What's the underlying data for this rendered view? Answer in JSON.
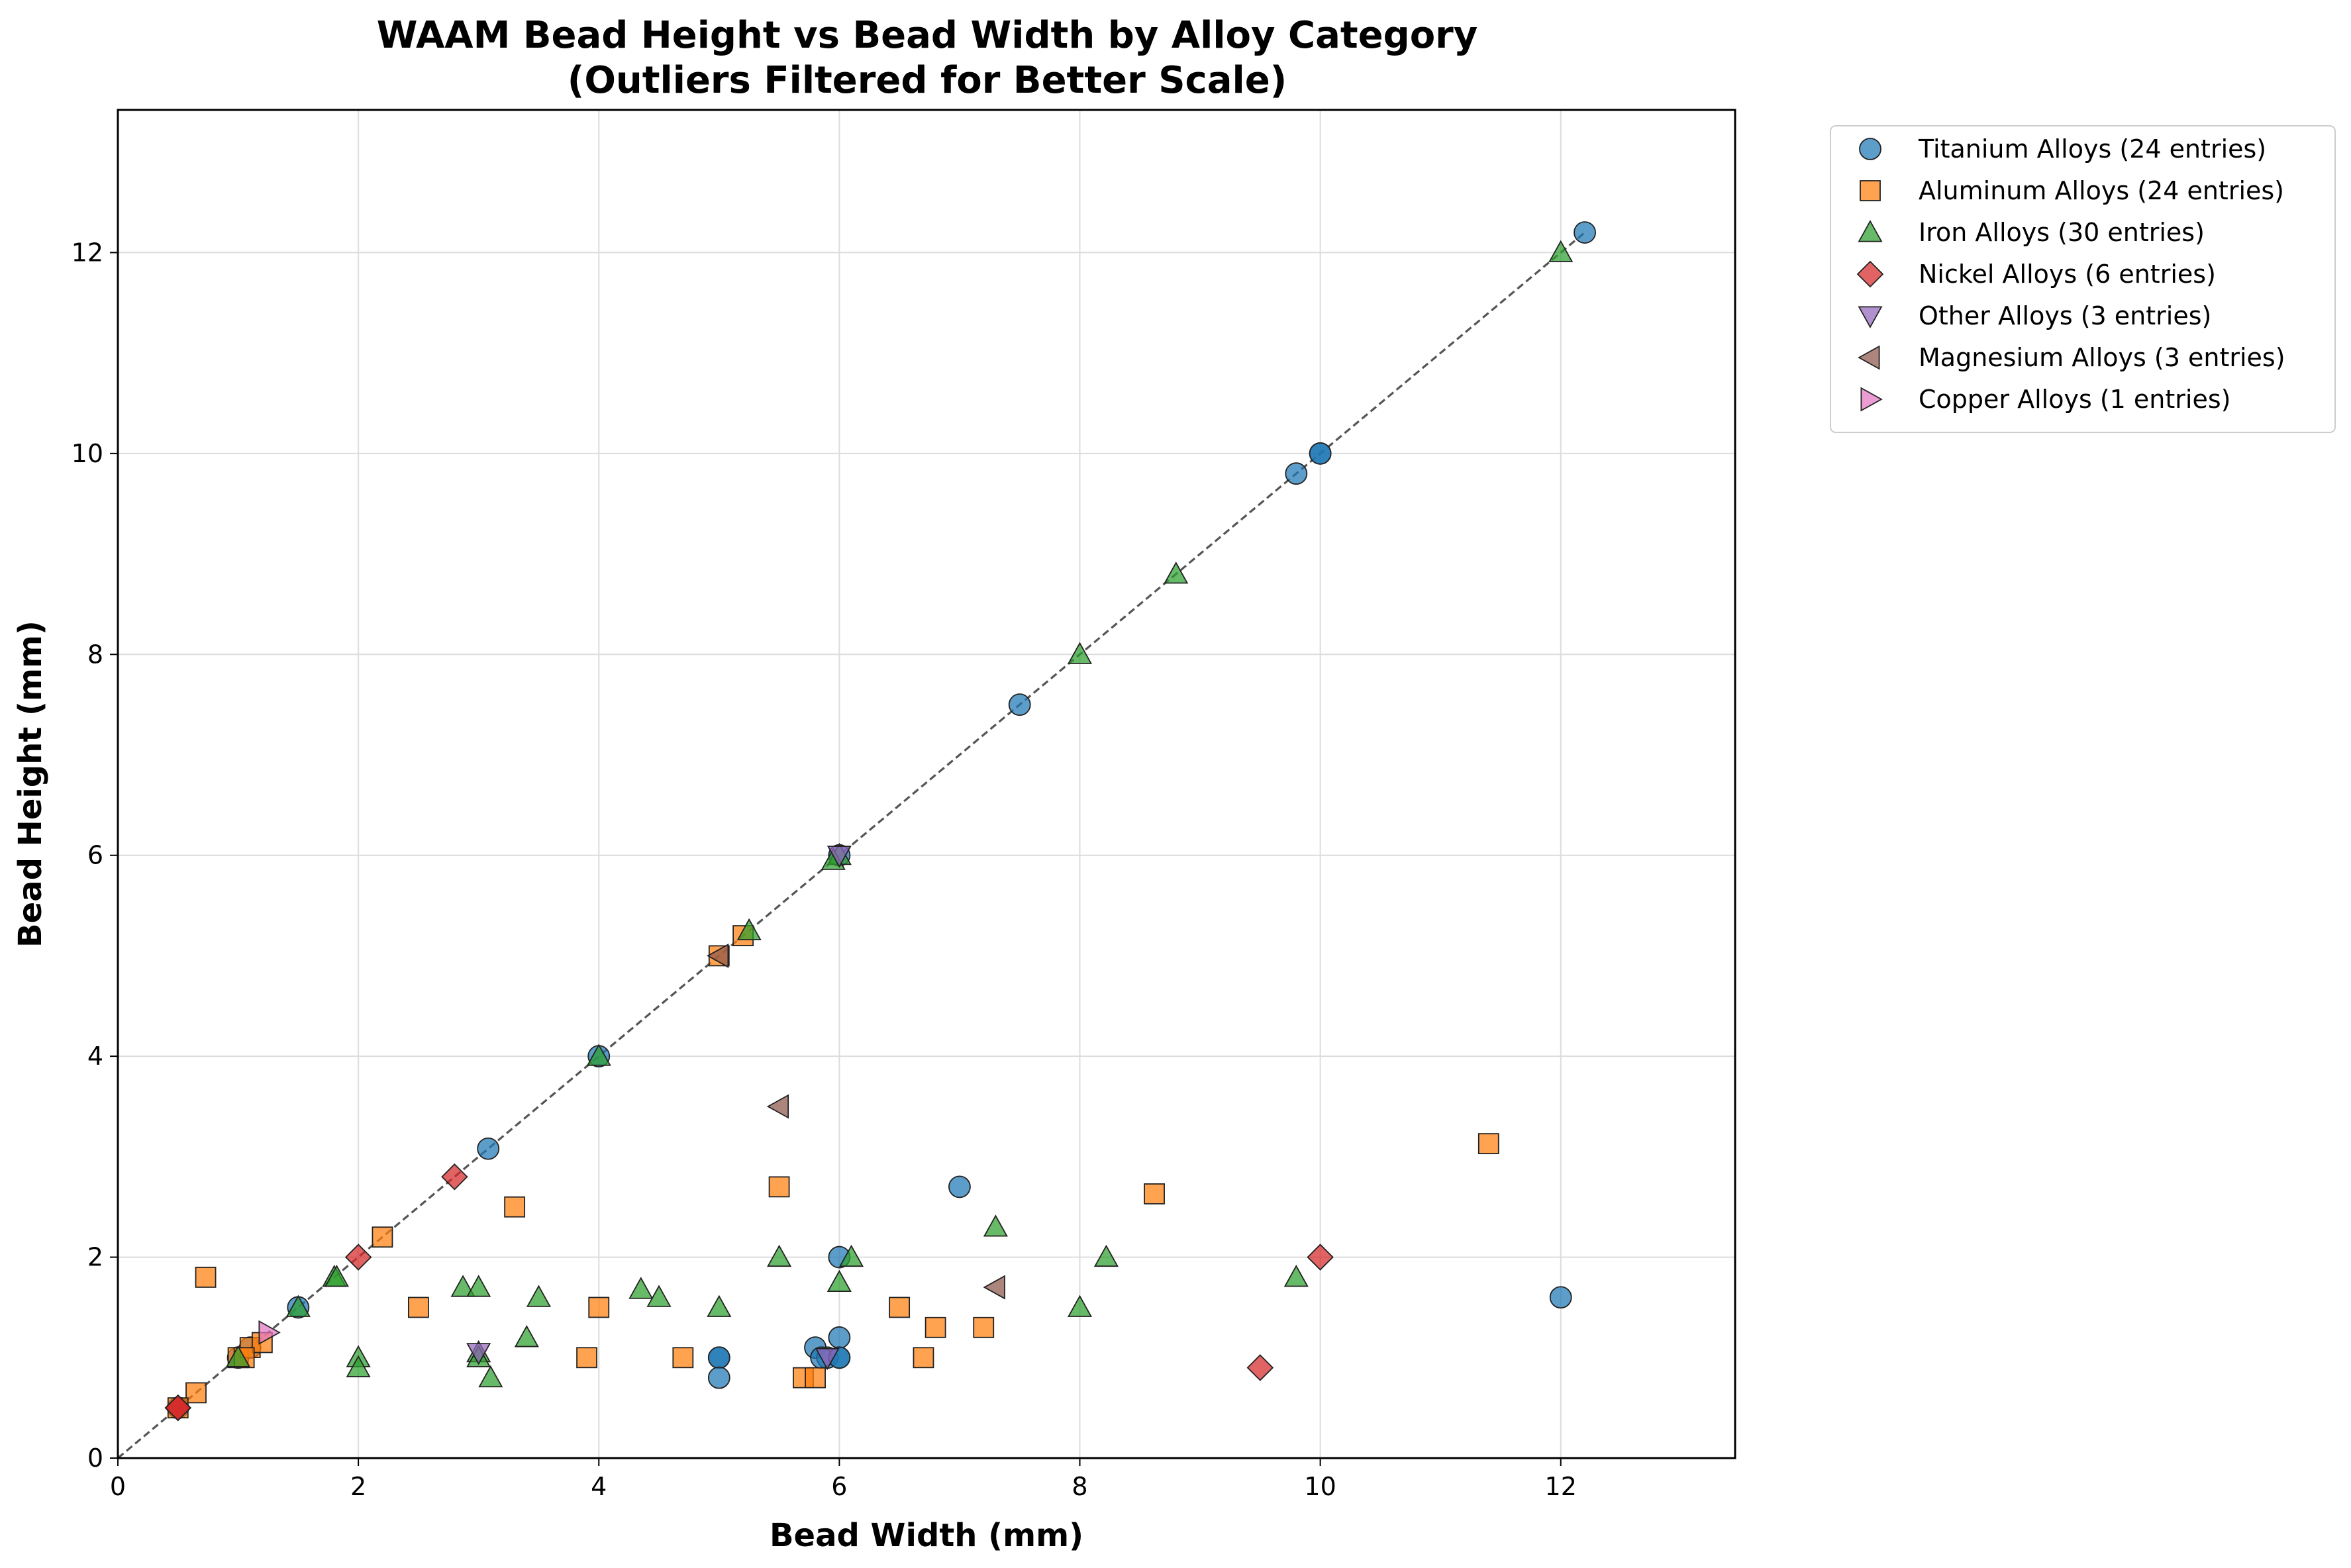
{
  "chart_data": {
    "type": "scatter",
    "title_lines": [
      "WAAM Bead Height vs Bead Width by Alloy Category",
      "(Outliers Filtered for Better Scale)"
    ],
    "xlabel": "Bead Width (mm)",
    "ylabel": "Bead Height (mm)",
    "xlim": [
      0,
      13.45
    ],
    "ylim": [
      0,
      13.42
    ],
    "xticks": [
      0,
      2,
      4,
      6,
      8,
      10,
      12
    ],
    "yticks": [
      0,
      2,
      4,
      6,
      8,
      10,
      12
    ],
    "grid": true,
    "legend_position": "outside-top-right",
    "reference_line": {
      "x": [
        0,
        12.2
      ],
      "y": [
        0,
        12.2
      ],
      "style": "dashed",
      "color": "#555555"
    },
    "series": [
      {
        "name": "Titanium Alloys (24 entries)",
        "marker": "circle",
        "color": "#1f77b4",
        "points": [
          [
            12.2,
            12.2
          ],
          [
            10,
            10
          ],
          [
            10,
            10
          ],
          [
            9.8,
            9.8
          ],
          [
            7.5,
            7.5
          ],
          [
            6,
            6
          ],
          [
            4,
            4
          ],
          [
            3.08,
            3.08
          ],
          [
            1.5,
            1.5
          ],
          [
            7,
            2.7
          ],
          [
            6,
            2
          ],
          [
            12,
            1.6
          ],
          [
            6,
            1.2
          ],
          [
            5.8,
            1.1
          ],
          [
            5.9,
            1
          ],
          [
            6,
            1
          ],
          [
            5,
            1
          ],
          [
            5,
            1
          ],
          [
            5,
            0.8
          ],
          [
            1,
            1
          ],
          [
            0.5,
            0.5
          ],
          [
            1.1,
            1.1
          ],
          [
            5.85,
            1
          ],
          [
            6,
            1
          ]
        ]
      },
      {
        "name": "Aluminum Alloys (24 entries)",
        "marker": "square",
        "color": "#ff7f0e",
        "points": [
          [
            11.4,
            3.13
          ],
          [
            8.62,
            2.63
          ],
          [
            5.5,
            2.7
          ],
          [
            3.3,
            2.5
          ],
          [
            2.2,
            2.2
          ],
          [
            0.73,
            1.8
          ],
          [
            2.5,
            1.5
          ],
          [
            4,
            1.5
          ],
          [
            6.5,
            1.5
          ],
          [
            6.8,
            1.3
          ],
          [
            7.2,
            1.3
          ],
          [
            3.9,
            1
          ],
          [
            4.7,
            1
          ],
          [
            6.7,
            1
          ],
          [
            5.7,
            0.8
          ],
          [
            5.8,
            0.8
          ],
          [
            5.2,
            5.2
          ],
          [
            5,
            5
          ],
          [
            1,
            1
          ],
          [
            1.1,
            1.1
          ],
          [
            1.2,
            1.15
          ],
          [
            0.65,
            0.65
          ],
          [
            0.5,
            0.5
          ],
          [
            1.05,
            1
          ]
        ]
      },
      {
        "name": "Iron Alloys (30 entries)",
        "marker": "triangle-up",
        "color": "#2ca02c",
        "points": [
          [
            12,
            12
          ],
          [
            8.8,
            8.8
          ],
          [
            8,
            8
          ],
          [
            6,
            6
          ],
          [
            5.95,
            5.95
          ],
          [
            5.25,
            5.25
          ],
          [
            4,
            4
          ],
          [
            1.8,
            1.8
          ],
          [
            1.5,
            1.5
          ],
          [
            1,
            1
          ],
          [
            7.3,
            2.3
          ],
          [
            8.22,
            2
          ],
          [
            6.1,
            2
          ],
          [
            5.5,
            2
          ],
          [
            6,
            1.75
          ],
          [
            9.8,
            1.8
          ],
          [
            2.87,
            1.7
          ],
          [
            3,
            1.7
          ],
          [
            4.35,
            1.68
          ],
          [
            4.5,
            1.6
          ],
          [
            3.5,
            1.6
          ],
          [
            5,
            1.5
          ],
          [
            8,
            1.5
          ],
          [
            3.4,
            1.2
          ],
          [
            3,
            1.05
          ],
          [
            3,
            1
          ],
          [
            2,
            1
          ],
          [
            2,
            0.9
          ],
          [
            3.1,
            0.8
          ],
          [
            1.82,
            1.8
          ]
        ]
      },
      {
        "name": "Nickel Alloys (6 entries)",
        "marker": "diamond",
        "color": "#d62728",
        "points": [
          [
            2.8,
            2.8
          ],
          [
            2,
            2
          ],
          [
            10,
            2
          ],
          [
            9.5,
            0.9
          ],
          [
            0.5,
            0.5
          ],
          [
            0.5,
            0.5
          ]
        ]
      },
      {
        "name": "Other Alloys (3 entries)",
        "marker": "triangle-down",
        "color": "#9467bd",
        "points": [
          [
            6,
            6
          ],
          [
            3,
            1.05
          ],
          [
            5.9,
            1
          ]
        ]
      },
      {
        "name": "Magnesium Alloys (3 entries)",
        "marker": "triangle-left",
        "color": "#8c564b",
        "points": [
          [
            5.5,
            3.5
          ],
          [
            7.3,
            1.7
          ],
          [
            5,
            5
          ]
        ]
      },
      {
        "name": "Copper Alloys (1 entries)",
        "marker": "triangle-right",
        "color": "#e377c2",
        "points": [
          [
            1.25,
            1.25
          ]
        ]
      }
    ]
  }
}
